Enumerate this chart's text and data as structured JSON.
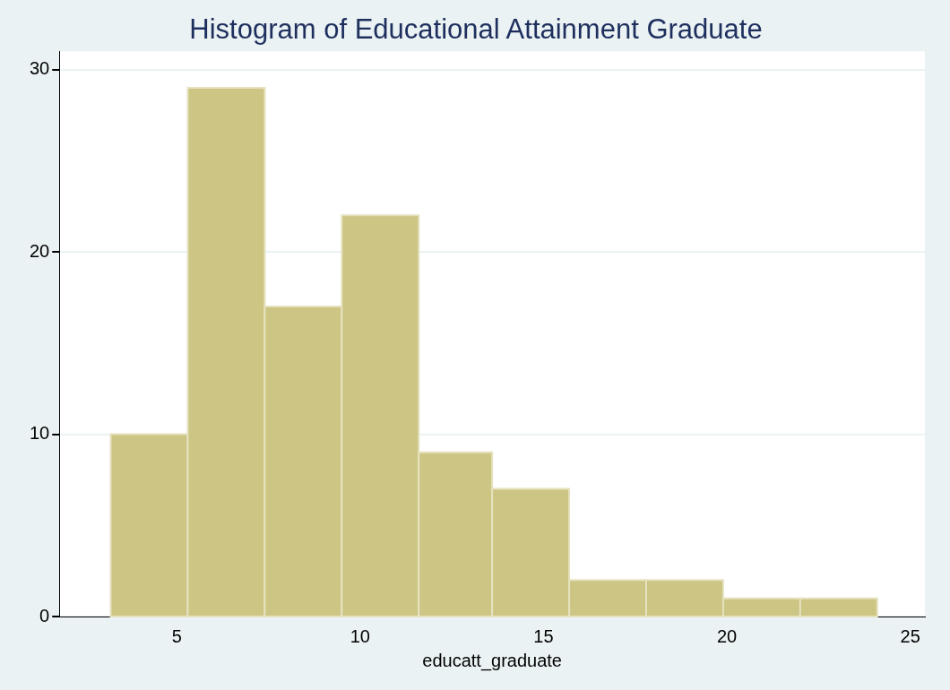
{
  "chart_data": {
    "type": "histogram",
    "title": "Histogram of Educational Attainment Graduate",
    "xlabel": "educatt_graduate",
    "bins": [
      3.2,
      5.3,
      7.4,
      9.5,
      11.6,
      13.6,
      15.7,
      17.8,
      19.9,
      22.0,
      24.1
    ],
    "values": [
      10,
      29,
      17,
      22,
      9,
      7,
      2,
      2,
      1,
      1
    ],
    "color": "#cdc584",
    "xlim": [
      1.8,
      25.4
    ],
    "xticks": [
      5,
      10,
      15,
      20,
      25
    ],
    "ylim": [
      0,
      31
    ],
    "yticks": [
      0,
      10,
      20,
      30
    ],
    "grid": "y",
    "legend": false
  }
}
